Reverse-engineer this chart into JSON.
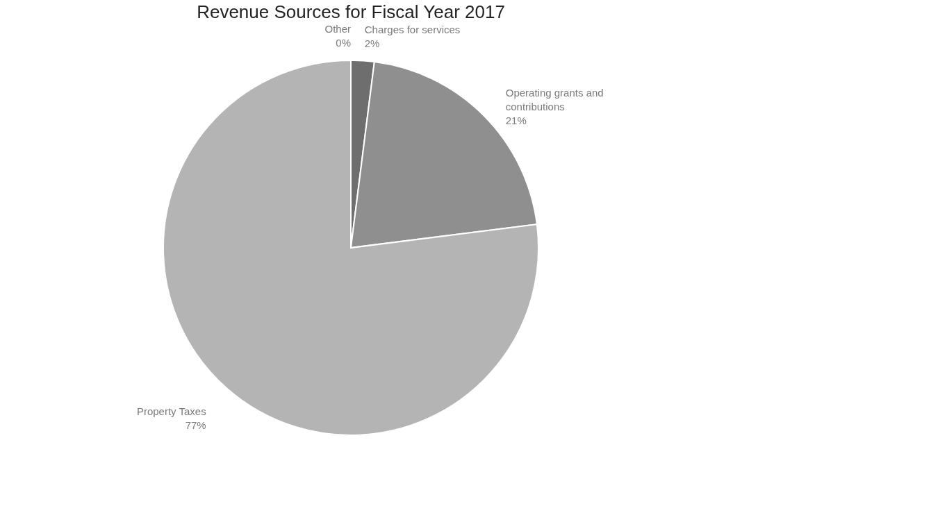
{
  "chart_data": {
    "type": "pie",
    "title": "Revenue Sources for Fiscal Year 2017",
    "categories": [
      "Charges for services",
      "Operating grants and contributions",
      "Property Taxes",
      "Other"
    ],
    "values": [
      2,
      21,
      77,
      0
    ],
    "colors": [
      "#6e6e6e",
      "#8f8f8f",
      "#b4b4b4",
      "#5a5a5a"
    ],
    "value_labels": [
      "2%",
      "21%",
      "77%",
      "0%"
    ],
    "legend": false
  }
}
